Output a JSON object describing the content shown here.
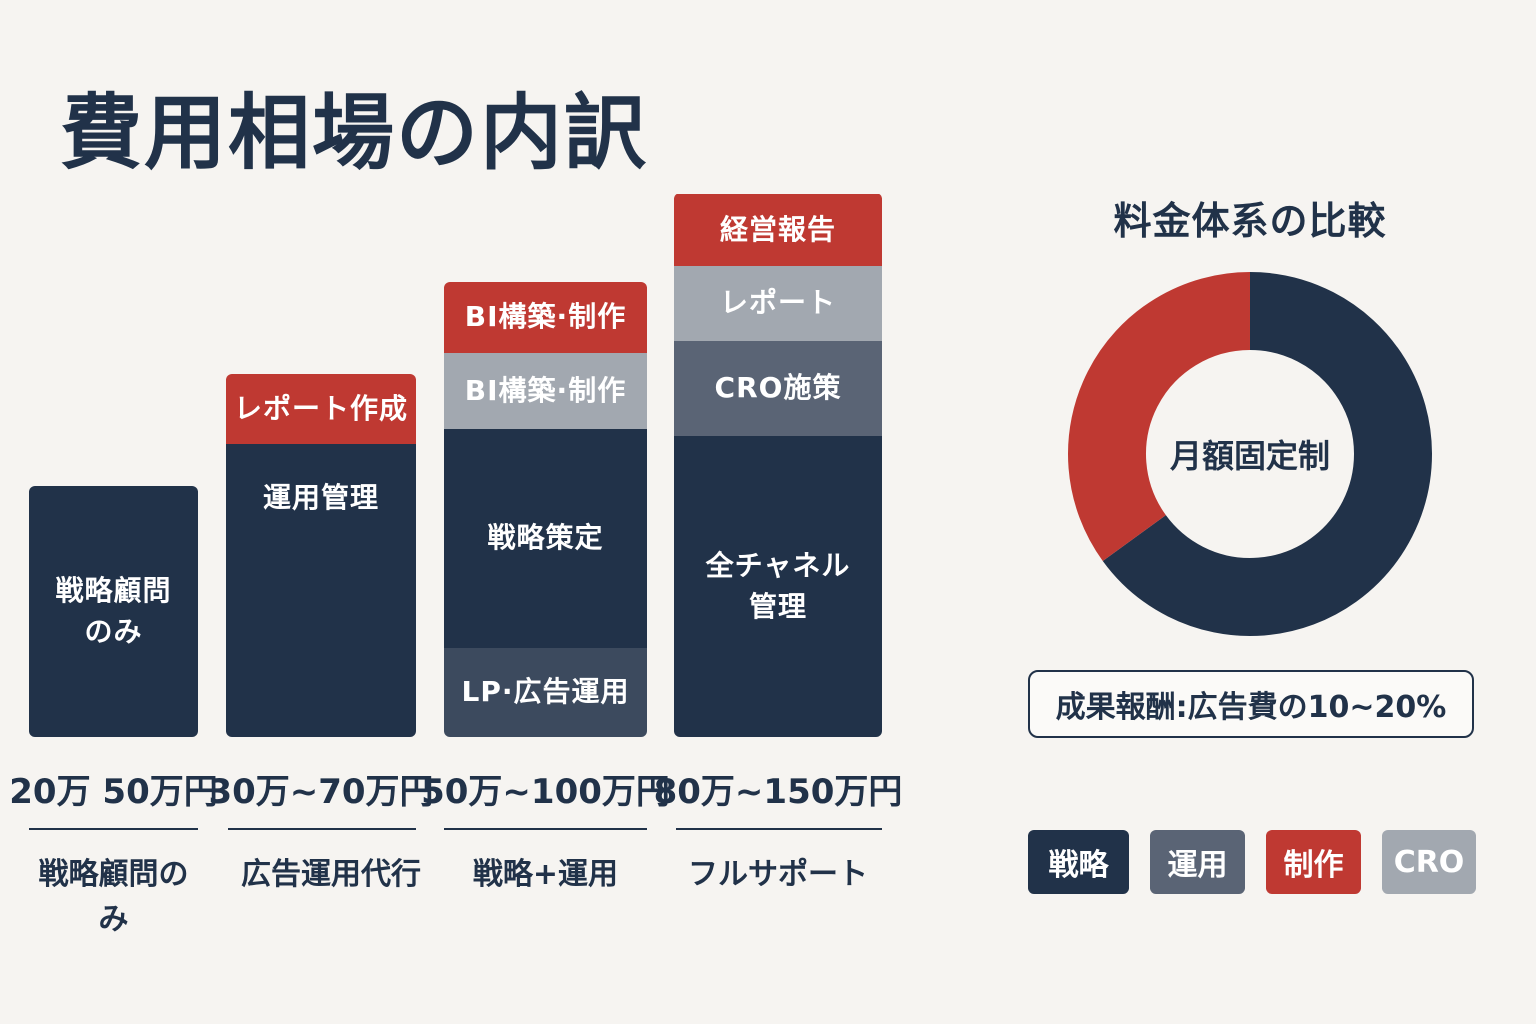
{
  "title": "費用相場の内訳",
  "colors": {
    "navy": "#213249",
    "slate": "#5a6475",
    "gray": "#a2a8b0",
    "red": "#bf3932",
    "background": "#f6f4f1"
  },
  "chart_data": [
    {
      "type": "bar",
      "stacked": true,
      "categories": [
        "戦略顧問のみ",
        "広告運用代行",
        "戦略+運用",
        "フルサポート"
      ],
      "plans": [
        {
          "plan_label": "戦略顧問の\nみ",
          "price": "20万 50万円",
          "segments": [
            {
              "label": "戦略顧問\nのみ",
              "color": "#213249"
            }
          ]
        },
        {
          "plan_label": "広告運用代行",
          "price": "30万~70万円",
          "segments": [
            {
              "label": "運用管理",
              "color": "#213249"
            },
            {
              "label": "レポート作成",
              "color": "#bf3932"
            }
          ]
        },
        {
          "plan_label": "戦略+運用",
          "price": "50万~100万円",
          "segments": [
            {
              "label": "LP·広告運用",
              "color": "#3c4a5e"
            },
            {
              "label": "戦略策定",
              "color": "#213249"
            },
            {
              "label": "BI構築·制作",
              "color": "#a2a8b0"
            },
            {
              "label": "BI構築·制作",
              "color": "#bf3932"
            }
          ]
        },
        {
          "plan_label": "フルサポート",
          "price": "80万~150万円",
          "segments": [
            {
              "label": "全チャネル\n管理",
              "color": "#213249"
            },
            {
              "label": "CRO施策",
              "color": "#5a6475"
            },
            {
              "label": "レポート",
              "color": "#a2a8b0"
            },
            {
              "label": "経営報告",
              "color": "#bf3932"
            }
          ]
        }
      ]
    },
    {
      "type": "pie",
      "title": "料金体系の比較",
      "center_label": "月額固定制",
      "slices": [
        {
          "name": "月額固定制",
          "value": 65,
          "color": "#213249"
        },
        {
          "name": "成果報酬",
          "value": 35,
          "color": "#bf3932"
        }
      ],
      "note": "成果報酬:広告費の10~20%"
    }
  ],
  "legend": [
    {
      "label": "戦略",
      "color": "#213249"
    },
    {
      "label": "運用",
      "color": "#5a6475"
    },
    {
      "label": "制作",
      "color": "#bf3932"
    },
    {
      "label": "CRO",
      "color": "#a2a8b0"
    }
  ]
}
